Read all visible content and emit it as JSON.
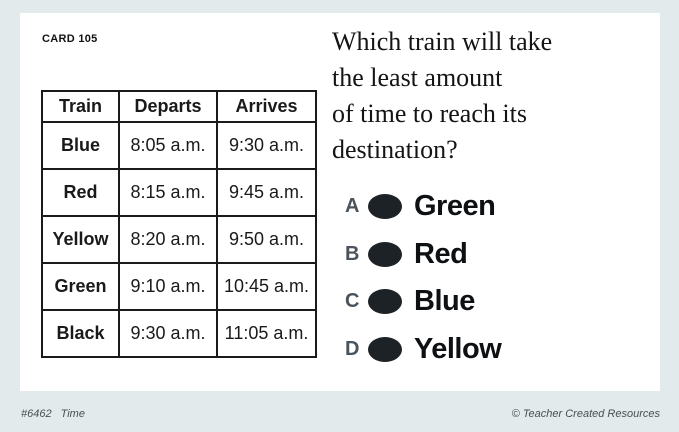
{
  "card": {
    "label": "CARD 105"
  },
  "schedule_table": {
    "headers": [
      "Train",
      "Departs",
      "Arrives"
    ],
    "rows": [
      {
        "train": "Blue",
        "departs": "8:05 a.m.",
        "arrives": "9:30 a.m."
      },
      {
        "train": "Red",
        "departs": "8:15 a.m.",
        "arrives": "9:45 a.m."
      },
      {
        "train": "Yellow",
        "departs": "8:20 a.m.",
        "arrives": "9:50 a.m."
      },
      {
        "train": "Green",
        "departs": "9:10 a.m.",
        "arrives": "10:45 a.m."
      },
      {
        "train": "Black",
        "departs": "9:30 a.m.",
        "arrives": "11:05 a.m."
      }
    ]
  },
  "question": {
    "text": "Which train will take\nthe least amount\nof time to reach its\ndestination?"
  },
  "options": [
    {
      "letter": "A",
      "label": "Green"
    },
    {
      "letter": "B",
      "label": "Red"
    },
    {
      "letter": "C",
      "label": "Blue"
    },
    {
      "letter": "D",
      "label": "Yellow"
    }
  ],
  "footer": {
    "code": "#6462",
    "topic": "Time",
    "copyright": "© Teacher Created Resources"
  },
  "colors": {
    "background": "#e3eaeb",
    "card": "#ffffff",
    "ink": "#1a1a1a",
    "option_letter": "#4b545c",
    "bubble": "#1d2227",
    "footer_text": "#4a4f52"
  }
}
